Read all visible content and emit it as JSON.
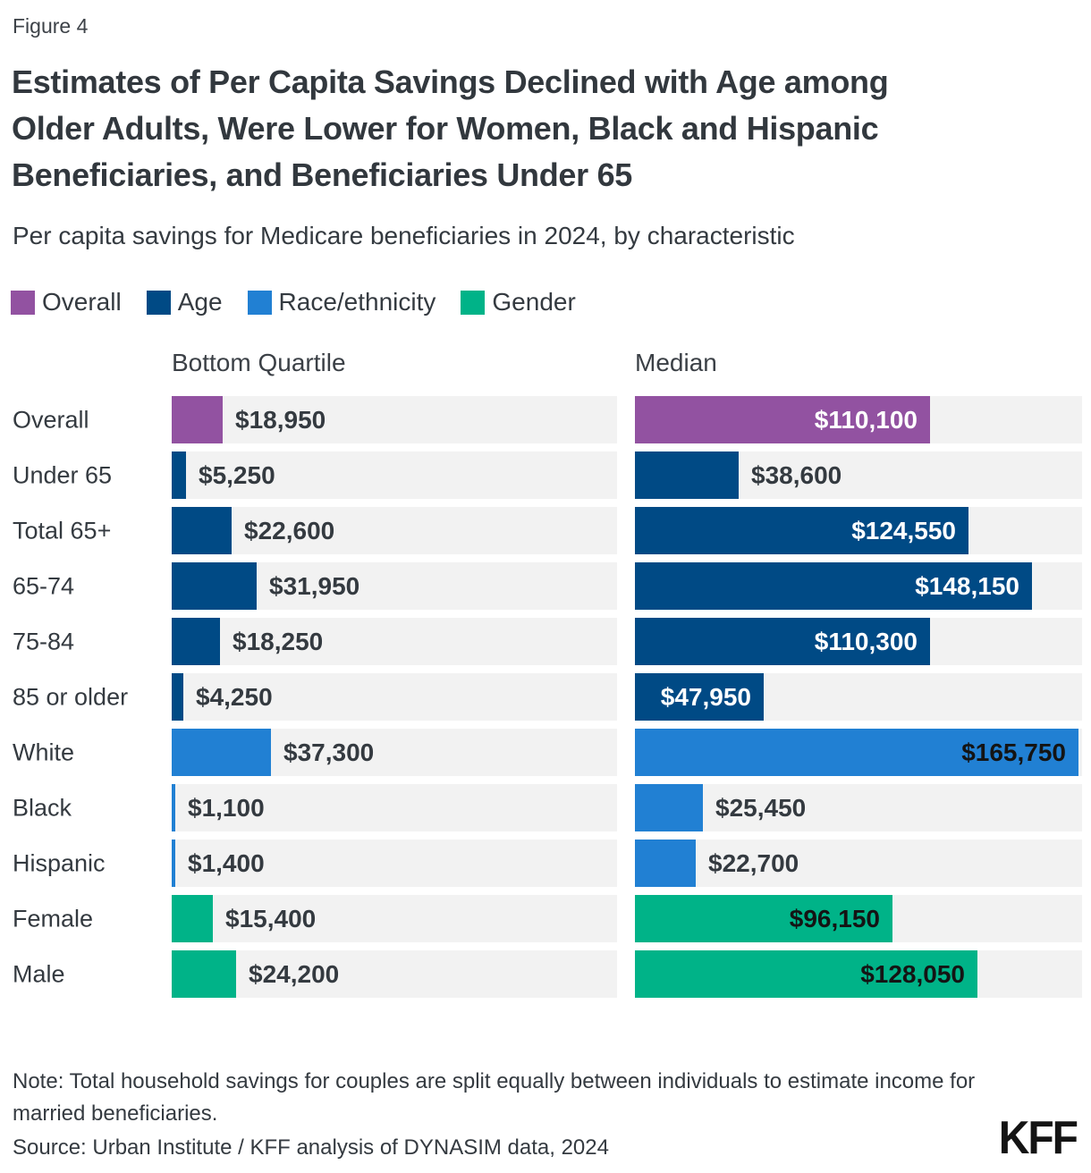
{
  "figure_label": "Figure 4",
  "title": "Estimates of Per Capita Savings Declined with Age among Older Adults, Were Lower for Women, Black and Hispanic Beneficiaries, and Beneficiaries Under 65",
  "title_lines": [
    "Estimates of Per Capita Savings Declined with Age among",
    "Older Adults, Were Lower for Women, Black and Hispanic",
    "Beneficiaries, and Beneficiaries Under 65"
  ],
  "subtitle": "Per capita savings for Medicare beneficiaries in 2024, by characteristic",
  "legend": [
    {
      "label": "Overall",
      "key": "overall"
    },
    {
      "label": "Age",
      "key": "age"
    },
    {
      "label": "Race/ethnicity",
      "key": "race"
    },
    {
      "label": "Gender",
      "key": "gender"
    }
  ],
  "columns": [
    "Bottom Quartile",
    "Median"
  ],
  "colors": {
    "overall": "#9252a1",
    "age": "#004a85",
    "race": "#2180d3",
    "gender": "#00b388",
    "track": "#f2f2f2",
    "label_inside_light": "#ffffff",
    "label_inside_dark": "#141414",
    "label_outside": "#343a40"
  },
  "inside_label_dark_keys": [
    "race",
    "gender"
  ],
  "chart_data": {
    "type": "bar",
    "orientation": "horizontal",
    "title": "Per capita savings for Medicare beneficiaries in 2024, by characteristic",
    "xlabel": "",
    "ylabel": "",
    "xmax": 167000,
    "grid": false,
    "legend_position": "top",
    "columns": [
      "Bottom Quartile",
      "Median"
    ],
    "categories": [
      "Overall",
      "Under 65",
      "Total 65+",
      "65-74",
      "75-84",
      "85 or older",
      "White",
      "Black",
      "Hispanic",
      "Female",
      "Male"
    ],
    "groups": [
      "overall",
      "age",
      "age",
      "age",
      "age",
      "age",
      "race",
      "race",
      "race",
      "gender",
      "gender"
    ],
    "series": [
      {
        "name": "Bottom Quartile",
        "values": [
          18950,
          5250,
          22600,
          31950,
          18250,
          4250,
          37300,
          1100,
          1400,
          15400,
          24200
        ],
        "labels": [
          "$18,950",
          "$5,250",
          "$22,600",
          "$31,950",
          "$18,250",
          "$4,250",
          "$37,300",
          "$1,100",
          "$1,400",
          "$15,400",
          "$24,200"
        ]
      },
      {
        "name": "Median",
        "values": [
          110100,
          38600,
          124550,
          148150,
          110300,
          47950,
          165750,
          25450,
          22700,
          96150,
          128050
        ],
        "labels": [
          "$110,100",
          "$38,600",
          "$124,550",
          "$148,150",
          "$110,300",
          "$47,950",
          "$165,750",
          "$25,450",
          "$22,700",
          "$96,150",
          "$128,050"
        ]
      }
    ]
  },
  "note": "Note: Total household savings for couples are split equally between individuals to estimate income for married beneficiaries.",
  "source": "Source: Urban Institute / KFF analysis of DYNASIM data, 2024",
  "logo": "KFF"
}
